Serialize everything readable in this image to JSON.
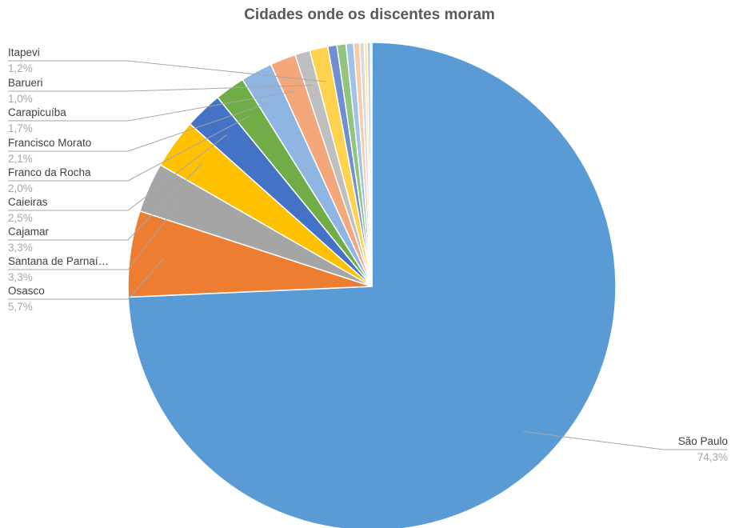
{
  "chart_data": {
    "type": "pie",
    "title": "Cidades onde os discentes moram",
    "slices": [
      {
        "label": "São Paulo",
        "value_label": "74,3%",
        "value": 74.3,
        "color": "#5b9bd5",
        "labeled": true
      },
      {
        "label": "Osasco",
        "value_label": "5,7%",
        "value": 5.7,
        "color": "#ed7d31",
        "labeled": true
      },
      {
        "label": "Santana de Parnaí…",
        "value_label": "3,3%",
        "value": 3.3,
        "color": "#a5a5a5",
        "labeled": true
      },
      {
        "label": "Cajamar",
        "value_label": "3,3%",
        "value": 3.3,
        "color": "#ffc000",
        "labeled": true
      },
      {
        "label": "Caieiras",
        "value_label": "2,5%",
        "value": 2.5,
        "color": "#4472c4",
        "labeled": true
      },
      {
        "label": "Franco da Rocha",
        "value_label": "2,0%",
        "value": 2.0,
        "color": "#70ad47",
        "labeled": true
      },
      {
        "label": "Francisco Morato",
        "value_label": "2,1%",
        "value": 2.1,
        "color": "#8fb5e3",
        "labeled": true
      },
      {
        "label": "Carapicuíba",
        "value_label": "1,7%",
        "value": 1.7,
        "color": "#f4a77a",
        "labeled": true
      },
      {
        "label": "Barueri",
        "value_label": "1,0%",
        "value": 1.0,
        "color": "#bfbfbf",
        "labeled": true
      },
      {
        "label": "Itapevi",
        "value_label": "1,2%",
        "value": 1.2,
        "color": "#ffd34d",
        "labeled": true
      },
      {
        "label": "",
        "value_label": "",
        "value": 0.6,
        "color": "#6f8fd0",
        "labeled": false
      },
      {
        "label": "",
        "value_label": "",
        "value": 0.6,
        "color": "#93c47d",
        "labeled": false
      },
      {
        "label": "",
        "value_label": "",
        "value": 0.5,
        "color": "#9dc3e6",
        "labeled": false
      },
      {
        "label": "",
        "value_label": "",
        "value": 0.4,
        "color": "#f8cbad",
        "labeled": false
      },
      {
        "label": "",
        "value_label": "",
        "value": 0.3,
        "color": "#d9d9d9",
        "labeled": false
      },
      {
        "label": "",
        "value_label": "",
        "value": 0.2,
        "color": "#ffe699",
        "labeled": false
      },
      {
        "label": "",
        "value_label": "",
        "value": 0.2,
        "color": "#b4c7e7",
        "labeled": false
      },
      {
        "label": "",
        "value_label": "",
        "value": 0.1,
        "color": "#c5e0b4",
        "labeled": false
      }
    ],
    "legend": "none",
    "data_labels": "outside-with-leader-lines"
  }
}
